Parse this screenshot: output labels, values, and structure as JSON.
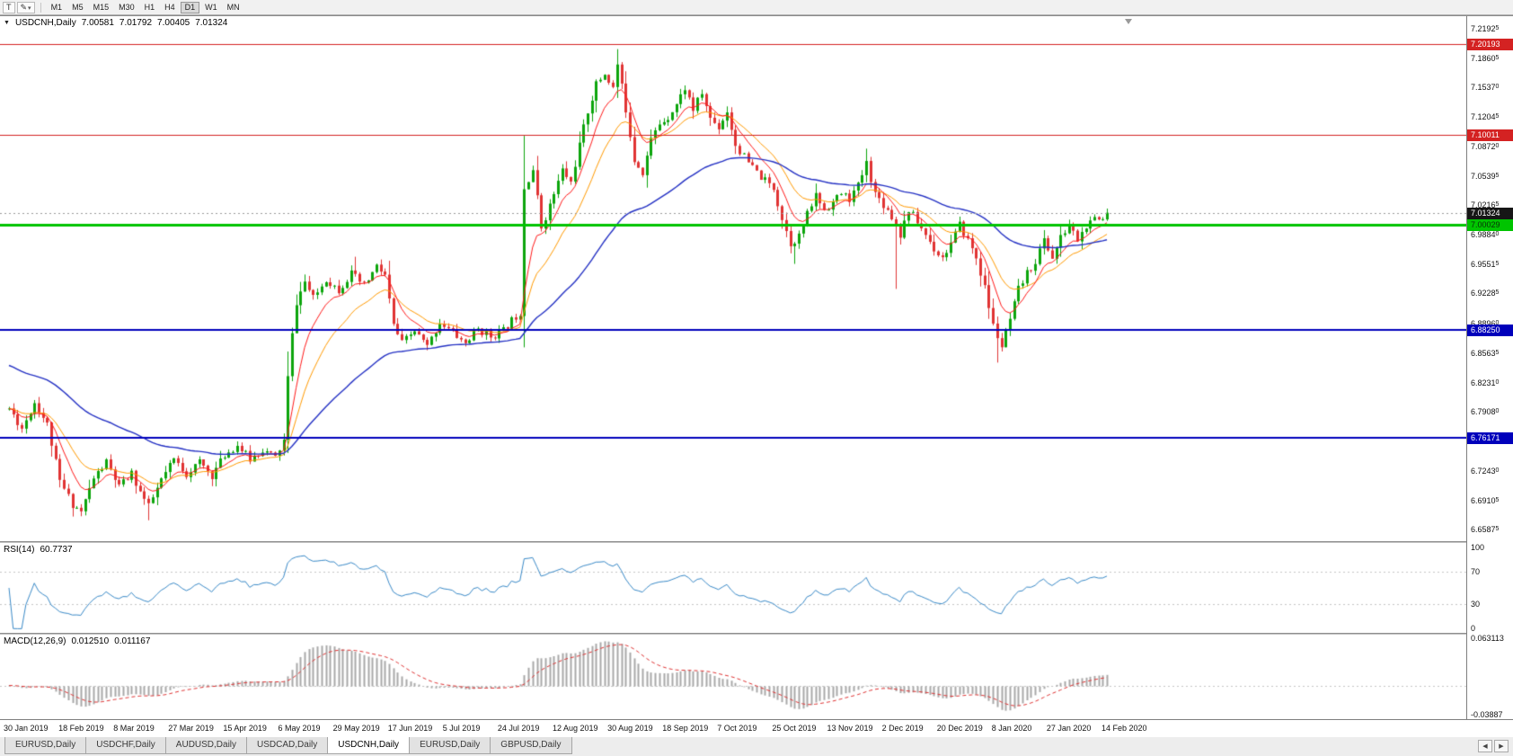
{
  "toolbar": {
    "t_button": "T",
    "pencil_icon": "✎",
    "dropdown_caret": "▾",
    "timeframes": [
      "M1",
      "M5",
      "M15",
      "M30",
      "H1",
      "H4",
      "D1",
      "W1",
      "MN"
    ],
    "active_timeframe": "D1"
  },
  "chart": {
    "title": {
      "marker": "▼",
      "symbol_period": "USDCNH,Daily",
      "open": "7.00581",
      "high": "7.01792",
      "low": "7.00405",
      "close": "7.01324"
    },
    "y_ticks": [
      "7.21925",
      "7.18605",
      "7.15370",
      "7.12045",
      "7.08720",
      "7.05395",
      "7.02165",
      "6.98840",
      "6.95515",
      "6.92285",
      "6.88960",
      "6.85635",
      "6.82310",
      "6.79080",
      "6.75755",
      "6.72430",
      "6.69105",
      "6.65875"
    ],
    "dates": [
      "30 Jan 2019",
      "18 Feb 2019",
      "8 Mar 2019",
      "27 Mar 2019",
      "15 Apr 2019",
      "6 May 2019",
      "29 May 2019",
      "17 Jun 2019",
      "5 Jul 2019",
      "24 Jul 2019",
      "12 Aug 2019",
      "30 Aug 2019",
      "18 Sep 2019",
      "7 Oct 2019",
      "25 Oct 2019",
      "13 Nov 2019",
      "2 Dec 2019",
      "20 Dec 2019",
      "8 Jan 2020",
      "27 Jan 2020",
      "14 Feb 2020"
    ],
    "hlines": [
      {
        "value": 7.20193,
        "label": "7.20193",
        "color": "#d42222",
        "width": 1,
        "text": "#ffffff"
      },
      {
        "value": 7.10011,
        "label": "7.10011",
        "color": "#d42222",
        "width": 1,
        "text": "#ffffff"
      },
      {
        "value": 7.00029,
        "label": "7.00029",
        "color": "#00c400",
        "width": 3,
        "text": "#083008"
      },
      {
        "value": 6.8825,
        "label": "6.88250",
        "color": "#0000bb",
        "width": 2,
        "text": "#ffffff"
      },
      {
        "value": 6.76171,
        "label": "6.76171",
        "color": "#0000bb",
        "width": 2,
        "text": "#ffffff"
      }
    ],
    "bid": {
      "value": 7.01324,
      "label": "7.01324",
      "badge_bg": "#161616",
      "text": "#ffffff",
      "line_color": "#9a9a9a"
    },
    "colors": {
      "up": "#0ca50c",
      "down": "#e03333",
      "background": "#ffffff"
    }
  },
  "rsi": {
    "name": "RSI(14)",
    "value": "60.7737",
    "levels": [
      "100",
      "70",
      "30",
      "0"
    ],
    "color": "#3a8ac8"
  },
  "macd": {
    "name": "MACD(12,26,9)",
    "value_main": "0.012510",
    "value_signal": "0.011167",
    "axis": [
      "0.063113",
      "-0.03887"
    ],
    "hist_color": "#a8a8a8",
    "signal_color": "#e03333"
  },
  "tabs": {
    "items": [
      {
        "label": "EURUSD,Daily"
      },
      {
        "label": "USDCHF,Daily"
      },
      {
        "label": "AUDUSD,Daily"
      },
      {
        "label": "USDCAD,Daily"
      },
      {
        "label": "USDCNH,Daily"
      },
      {
        "label": "EURUSD,Daily"
      },
      {
        "label": "GBPUSD,Daily"
      }
    ],
    "active_index": 4,
    "scroll_left": "◀",
    "scroll_right": "▶"
  },
  "chart_data": {
    "type": "candlestick",
    "symbol": "USDCNH",
    "timeframe": "Daily",
    "last_bar": {
      "o": 7.00581,
      "h": 7.01792,
      "l": 7.00405,
      "c": 7.01324
    },
    "geometry": {
      "x0": 10,
      "dx": 4.7,
      "bars": 261,
      "label_every": 13
    },
    "scale": {
      "main": {
        "top": 7.2333,
        "bottom": 6.6456
      },
      "rsi": {
        "top": 105,
        "bottom": -5
      },
      "macd": {
        "top": 0.068,
        "bottom": -0.045
      }
    },
    "seed": 11,
    "vol": 0.0045,
    "wick": 0.0035,
    "waypoints": [
      [
        0,
        6.794
      ],
      [
        3,
        6.772
      ],
      [
        6,
        6.801
      ],
      [
        9,
        6.776
      ],
      [
        12,
        6.712
      ],
      [
        15,
        6.687
      ],
      [
        17,
        6.679
      ],
      [
        20,
        6.716
      ],
      [
        23,
        6.734
      ],
      [
        26,
        6.706
      ],
      [
        29,
        6.721
      ],
      [
        31,
        6.701
      ],
      [
        33,
        6.684
      ],
      [
        36,
        6.714
      ],
      [
        39,
        6.737
      ],
      [
        42,
        6.721
      ],
      [
        45,
        6.734
      ],
      [
        48,
        6.719
      ],
      [
        51,
        6.742
      ],
      [
        54,
        6.753
      ],
      [
        57,
        6.737
      ],
      [
        60,
        6.748
      ],
      [
        63,
        6.739
      ],
      [
        65,
        6.758
      ],
      [
        66,
        6.828
      ],
      [
        67,
        6.876
      ],
      [
        68,
        6.913
      ],
      [
        70,
        6.936
      ],
      [
        72,
        6.917
      ],
      [
        75,
        6.939
      ],
      [
        78,
        6.927
      ],
      [
        81,
        6.945
      ],
      [
        84,
        6.931
      ],
      [
        87,
        6.953
      ],
      [
        89,
        6.943
      ],
      [
        91,
        6.887
      ],
      [
        93,
        6.867
      ],
      [
        96,
        6.881
      ],
      [
        99,
        6.863
      ],
      [
        102,
        6.891
      ],
      [
        105,
        6.879
      ],
      [
        108,
        6.867
      ],
      [
        111,
        6.883
      ],
      [
        114,
        6.875
      ],
      [
        117,
        6.881
      ],
      [
        119,
        6.893
      ],
      [
        121,
        6.902
      ],
      [
        122,
        7.042
      ],
      [
        124,
        7.062
      ],
      [
        126,
        6.997
      ],
      [
        128,
        7.021
      ],
      [
        131,
        7.061
      ],
      [
        133,
        7.047
      ],
      [
        135,
        7.089
      ],
      [
        137,
        7.127
      ],
      [
        139,
        7.157
      ],
      [
        141,
        7.169
      ],
      [
        143,
        7.153
      ],
      [
        144,
        7.179
      ],
      [
        146,
        7.129
      ],
      [
        148,
        7.073
      ],
      [
        150,
        7.059
      ],
      [
        152,
        7.095
      ],
      [
        154,
        7.113
      ],
      [
        156,
        7.121
      ],
      [
        158,
        7.135
      ],
      [
        160,
        7.153
      ],
      [
        162,
        7.129
      ],
      [
        164,
        7.147
      ],
      [
        166,
        7.119
      ],
      [
        168,
        7.109
      ],
      [
        170,
        7.127
      ],
      [
        172,
        7.089
      ],
      [
        175,
        7.069
      ],
      [
        178,
        7.053
      ],
      [
        181,
        7.041
      ],
      [
        183,
        7.007
      ],
      [
        185,
        6.979
      ],
      [
        187,
        6.987
      ],
      [
        189,
        7.011
      ],
      [
        191,
        7.033
      ],
      [
        193,
        7.017
      ],
      [
        195,
        7.025
      ],
      [
        197,
        7.035
      ],
      [
        199,
        7.029
      ],
      [
        201,
        7.043
      ],
      [
        203,
        7.069
      ],
      [
        205,
        7.035
      ],
      [
        207,
        7.023
      ],
      [
        209,
        7.009
      ],
      [
        211,
        6.989
      ],
      [
        213,
        7.017
      ],
      [
        215,
        7.003
      ],
      [
        217,
        6.989
      ],
      [
        219,
        6.973
      ],
      [
        221,
        6.963
      ],
      [
        223,
        6.979
      ],
      [
        225,
        6.999
      ],
      [
        227,
        6.983
      ],
      [
        229,
        6.963
      ],
      [
        231,
        6.929
      ],
      [
        233,
        6.887
      ],
      [
        235,
        6.863
      ],
      [
        237,
        6.893
      ],
      [
        239,
        6.927
      ],
      [
        241,
        6.945
      ],
      [
        243,
        6.959
      ],
      [
        245,
        6.983
      ],
      [
        247,
        6.963
      ],
      [
        249,
        6.985
      ],
      [
        251,
        6.999
      ],
      [
        253,
        6.983
      ],
      [
        255,
        6.997
      ],
      [
        257,
        7.005
      ],
      [
        259,
        7.006
      ],
      [
        260,
        7.013
      ]
    ],
    "spikes": [
      {
        "i": 7,
        "h": 6.807
      },
      {
        "i": 17,
        "l": 6.6735
      },
      {
        "i": 33,
        "l": 6.669
      },
      {
        "i": 82,
        "h": 6.964
      },
      {
        "i": 122,
        "h": 7.072
      },
      {
        "i": 144,
        "h": 7.1964
      },
      {
        "i": 186,
        "l": 6.956
      },
      {
        "i": 203,
        "h": 7.085
      },
      {
        "i": 210,
        "l": 6.928
      },
      {
        "i": 234,
        "l": 6.8455
      }
    ],
    "ma": [
      {
        "period": 17,
        "color": "#ff9a00",
        "width": 1,
        "seed_offset": 0
      },
      {
        "period": 8,
        "color": "#ff1a1a",
        "width": 1,
        "seed_offset": 0
      },
      {
        "period": 55,
        "color": "#2431c4",
        "width": 1.4,
        "seed_offset": 0.05
      }
    ],
    "indicators": {
      "rsi_period": 14,
      "macd": [
        12,
        26,
        9
      ]
    }
  }
}
